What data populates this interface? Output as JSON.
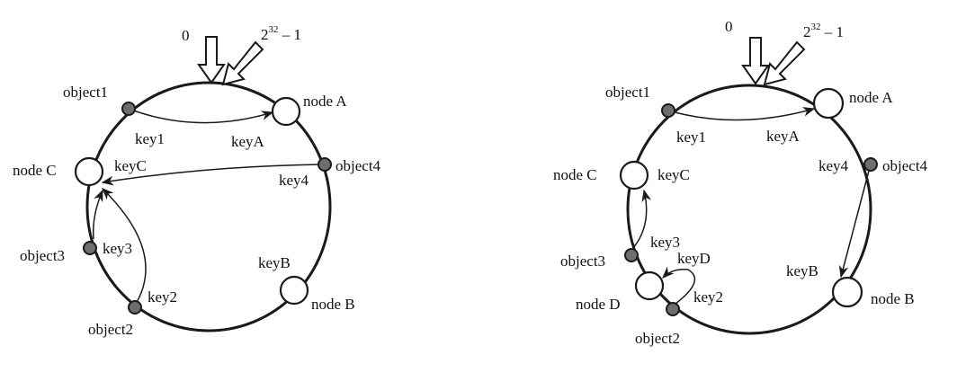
{
  "left": {
    "top_zero": "0",
    "top_max": "2",
    "top_max_sup": "32",
    "top_max_suffix": " – 1",
    "node_a": "node A",
    "node_b": "node B",
    "node_c": "node C",
    "object1": "object1",
    "object2": "object2",
    "object3": "object3",
    "object4": "object4",
    "key1": "key1",
    "key2": "key2",
    "key3": "key3",
    "key4": "key4",
    "keyA": "keyA",
    "keyB": "keyB",
    "keyC": "keyC"
  },
  "right": {
    "top_zero": "0",
    "top_max": "2",
    "top_max_sup": "32",
    "top_max_suffix": " – 1",
    "node_a": "node A",
    "node_b": "node B",
    "node_c": "node C",
    "node_d": "node D",
    "object1": "object1",
    "object2": "object2",
    "object3": "object3",
    "object4": "object4",
    "key1": "key1",
    "key2": "key2",
    "key3": "key3",
    "key4": "key4",
    "keyA": "keyA",
    "keyB": "keyB",
    "keyC": "keyC",
    "keyD": "keyD"
  }
}
